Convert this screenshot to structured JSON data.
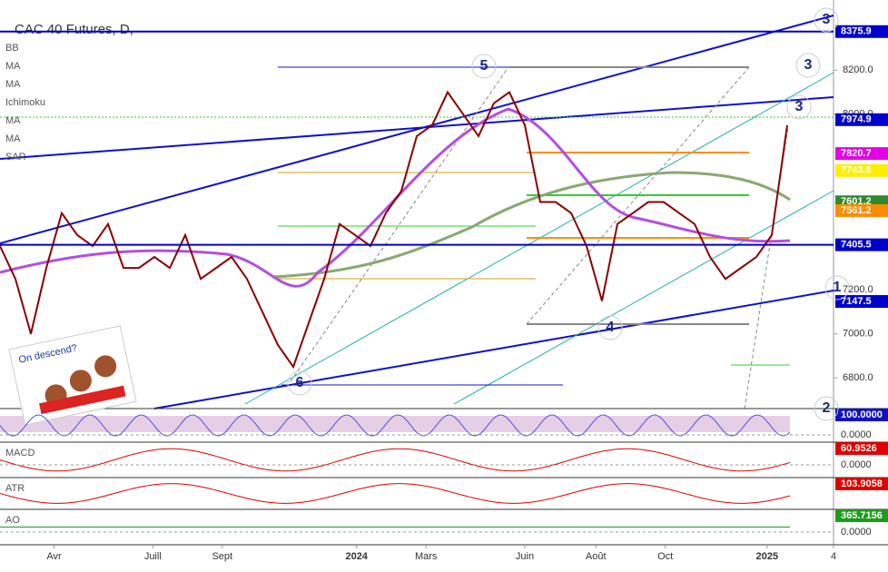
{
  "header": {
    "title": "CAC 40 Futures, D,"
  },
  "indicators": [
    "BB",
    "MA",
    "MA",
    "Ichimoku",
    "MA",
    "MA",
    "SAR"
  ],
  "note": "On descend?",
  "wave_labels": [
    "3",
    "3",
    "3",
    "5",
    "4",
    "6",
    "1",
    "2"
  ],
  "chart_data": {
    "type": "line",
    "x": [
      0,
      1,
      2,
      3,
      4,
      5,
      6,
      7,
      8,
      9,
      10,
      11,
      12,
      13,
      14,
      15,
      16,
      17,
      18,
      19,
      20,
      21,
      22,
      23,
      24,
      25,
      26,
      27,
      28,
      29,
      30,
      31,
      32,
      33,
      34,
      35,
      36,
      37,
      38,
      39,
      40,
      41,
      42,
      43,
      44,
      45,
      46,
      47,
      48,
      49,
      50,
      51
    ],
    "values": [
      7400,
      7250,
      7000,
      7300,
      7550,
      7450,
      7400,
      7500,
      7300,
      7300,
      7350,
      7300,
      7450,
      7250,
      7300,
      7350,
      7250,
      7100,
      6950,
      6850,
      7050,
      7250,
      7500,
      7450,
      7400,
      7550,
      7650,
      7900,
      7950,
      8100,
      8000,
      7900,
      8050,
      8100,
      7950,
      7600,
      7600,
      7550,
      7400,
      7150,
      7500,
      7550,
      7600,
      7600,
      7550,
      7500,
      7350,
      7250,
      7300,
      7350,
      7450,
      7950
    ],
    "color": "#8b0000",
    "xlim": [
      0,
      54
    ],
    "ylim": [
      6660,
      8470
    ],
    "xticks": [
      {
        "value": 3.5,
        "label": "Avr"
      },
      {
        "value": 9.9,
        "label": "Juill"
      },
      {
        "value": 14.4,
        "label": "Sept"
      },
      {
        "value": 23.1,
        "label": "2024"
      },
      {
        "value": 27.6,
        "label": "Mars"
      },
      {
        "value": 34,
        "label": "Juin"
      },
      {
        "value": 38.6,
        "label": "Août"
      },
      {
        "value": 43.1,
        "label": "Oct"
      },
      {
        "value": 49.7,
        "label": "2025"
      },
      {
        "value": 54,
        "label": "4"
      }
    ],
    "yticks": [
      {
        "value": 6800,
        "label": "6800.0"
      },
      {
        "value": 7000,
        "label": "7000.0"
      },
      {
        "value": 7200,
        "label": "7200.0"
      },
      {
        "value": 8000,
        "label": "8000.0"
      },
      {
        "value": 8200,
        "label": "8200.0"
      }
    ],
    "levels": [
      {
        "value": 8375.9,
        "color": "#0000cc"
      },
      {
        "value": 7974.9,
        "color": "#0000cc"
      },
      {
        "value": 7820.7,
        "color": "#e600e6"
      },
      {
        "value": 7743.6,
        "color": "#ffee00"
      },
      {
        "value": 7601.2,
        "color": "#2e8b2e"
      },
      {
        "value": 7561.2,
        "color": "#ff8c00"
      },
      {
        "value": 7405.5,
        "color": "#0000cc"
      },
      {
        "value": 7147.5,
        "color": "#0000cc"
      }
    ]
  },
  "panes": [
    {
      "tag": {
        "value": 100,
        "label": "100.0000"
      },
      "zero": {
        "value": 0,
        "label": "0.0000"
      },
      "color": "#0000cc"
    },
    {
      "label": "MACD",
      "tag": {
        "value": 60.9526,
        "label": "60.9526"
      },
      "zero": {
        "value": 0,
        "label": "0.0000"
      },
      "color": "#e00000"
    },
    {
      "label": "ATR",
      "tag": {
        "value": 103.9058,
        "label": "103.9058"
      },
      "color": "#e00000"
    },
    {
      "label": "AO",
      "tag": {
        "value": 365.7156,
        "label": "365.7156"
      },
      "zero": {
        "value": 0,
        "label": "0.0000"
      },
      "color": "#1a9e1a"
    }
  ]
}
